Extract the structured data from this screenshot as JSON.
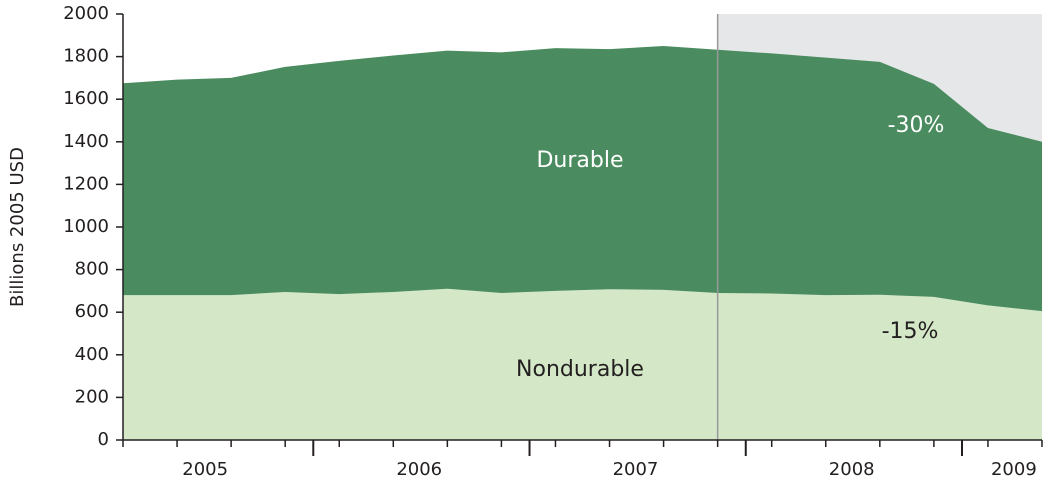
{
  "chart_data": {
    "type": "stacked_area",
    "y_label": "Billions 2005 USD",
    "x": [
      2005,
      2005.25,
      2005.5,
      2005.75,
      2006,
      2006.25,
      2006.5,
      2006.75,
      2007,
      2007.25,
      2007.5,
      2007.75,
      2008,
      2008.25,
      2008.5,
      2008.75,
      2009,
      2009.25
    ],
    "series": [
      {
        "name": "Nondurable",
        "color": "#d4e8c8",
        "values": [
          680,
          680,
          680,
          695,
          685,
          695,
          710,
          690,
          700,
          708,
          705,
          690,
          688,
          680,
          682,
          672,
          632,
          605
        ]
      },
      {
        "name": "Durable",
        "color": "#4a8c5f",
        "values": [
          995,
          1012,
          1020,
          1057,
          1095,
          1110,
          1118,
          1130,
          1140,
          1127,
          1145,
          1142,
          1127,
          1115,
          1093,
          1000,
          833,
          795
        ]
      }
    ],
    "annotations": [
      "-30%",
      "-15%"
    ],
    "recession_start": 2007.75,
    "recession_color": "#e6e7e9",
    "xlim": [
      2005,
      2009.25
    ],
    "xticks": [
      {
        "value": 2005.38,
        "label": "2005"
      },
      {
        "value": 2006.37,
        "label": "2006"
      },
      {
        "value": 2007.37,
        "label": "2007"
      },
      {
        "value": 2008.37,
        "label": "2008"
      },
      {
        "value": 2009.12,
        "label": "2009"
      }
    ],
    "xmajor_ticks": [
      2005.88,
      2006.88,
      2007.88,
      2008.88
    ],
    "ylim": [
      0,
      2000
    ],
    "yticks": [
      0,
      200,
      400,
      600,
      800,
      1000,
      1200,
      1400,
      1600,
      1800,
      2000
    ]
  }
}
